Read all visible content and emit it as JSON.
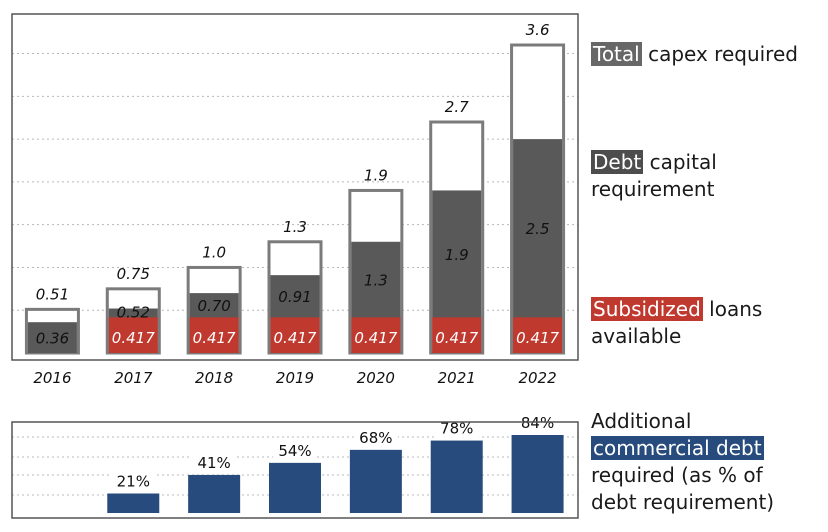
{
  "chart_data": [
    {
      "type": "bar",
      "categories": [
        "2016",
        "2017",
        "2018",
        "2019",
        "2020",
        "2021",
        "2022"
      ],
      "series": [
        {
          "name": "Total capex required",
          "values": [
            0.51,
            0.75,
            1.0,
            1.3,
            1.9,
            2.7,
            3.6
          ],
          "labels": [
            "0.51",
            "0.75",
            "1.0",
            "1.3",
            "1.9",
            "2.7",
            "3.6"
          ]
        },
        {
          "name": "Debt capital requirement",
          "values": [
            0.36,
            0.52,
            0.7,
            0.91,
            1.3,
            1.9,
            2.5
          ],
          "labels": [
            "0.36",
            "0.52",
            "0.70",
            "0.91",
            "1.3",
            "1.9",
            "2.5"
          ]
        },
        {
          "name": "Subsidized loans available",
          "values": [
            null,
            0.417,
            0.417,
            0.417,
            0.417,
            0.417,
            0.417
          ],
          "labels": [
            "",
            "0.417",
            "0.417",
            "0.417",
            "0.417",
            "0.417",
            "0.417"
          ]
        }
      ],
      "ylim": [
        0,
        4.0
      ],
      "grid": true
    },
    {
      "type": "bar",
      "categories": [
        "2016",
        "2017",
        "2018",
        "2019",
        "2020",
        "2021",
        "2022"
      ],
      "series": [
        {
          "name": "Additional commercial debt required (as % of debt requirement)",
          "values": [
            null,
            21,
            41,
            54,
            68,
            78,
            84
          ],
          "labels": [
            "",
            "21%",
            "41%",
            "54%",
            "68%",
            "78%",
            "84%"
          ]
        }
      ],
      "ylim": [
        0,
        100
      ],
      "grid": true
    }
  ],
  "legend": {
    "total": {
      "highlight": "Total",
      "rest": " capex required"
    },
    "debt": {
      "highlight": "Debt",
      "rest": " capital",
      "line2": "requirement"
    },
    "subsidized": {
      "highlight": "Subsidized",
      "rest": " loans",
      "line2": "available"
    },
    "commercial": {
      "line1": "Additional",
      "highlight": "commercial debt",
      "line3": "required (as % of",
      "line4": "debt requirement)"
    }
  },
  "colors": {
    "total_fill": "#ffffff",
    "total_border": "#7b7b7b",
    "debt": "#595959",
    "subsidized": "#c0392f",
    "commercial": "#274b7c",
    "grid": "#b8b8b8",
    "frame": "#555555"
  }
}
